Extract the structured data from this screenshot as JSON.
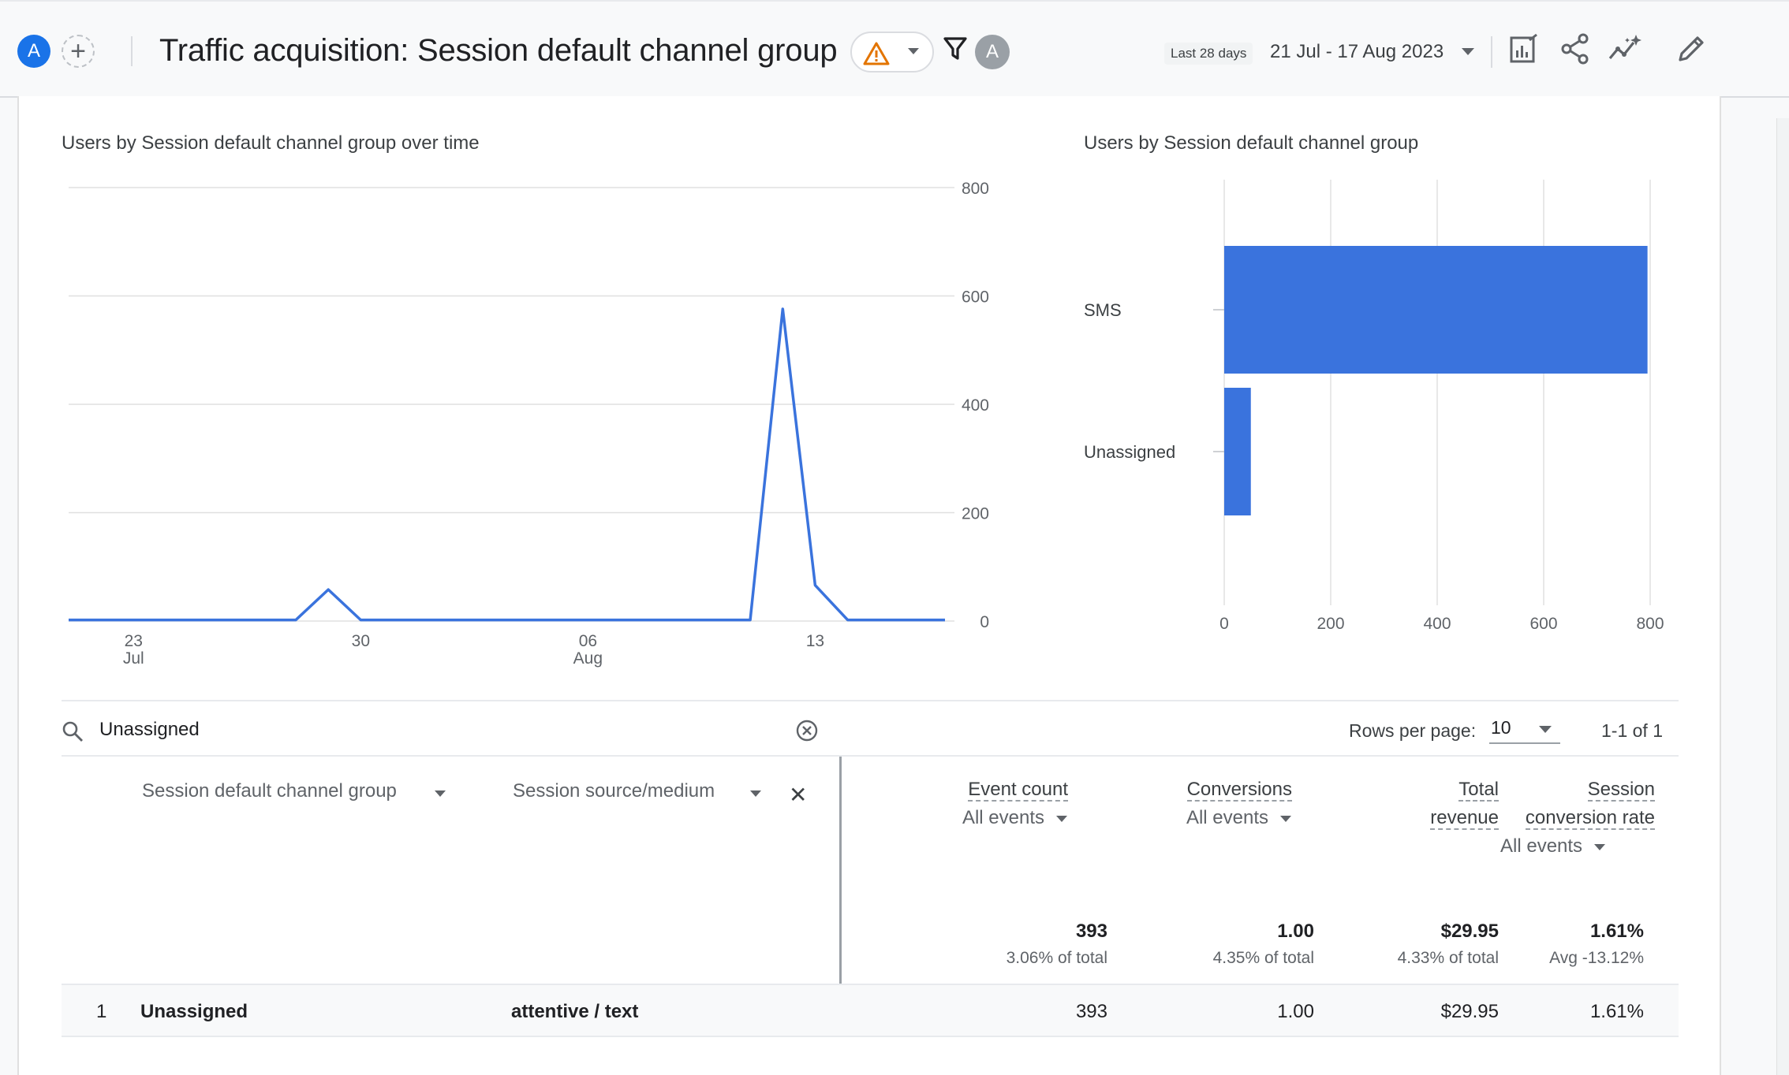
{
  "header": {
    "avatar_letter": "A",
    "add_comparison_symbol": "+",
    "title": "Traffic acquisition: Session default channel group",
    "comparison_avatar_letter": "A",
    "date_badge": "Last 28 days",
    "date_range": "21 Jul - 17 Aug 2023",
    "icons": [
      "warning-icon",
      "filter-icon",
      "customize-report-icon",
      "share-icon",
      "insights-icon",
      "edit-icon"
    ],
    "warning_color": "#e37400"
  },
  "line_chart": {
    "title": "Users by Session default channel group over time"
  },
  "bar_chart": {
    "title": "Users by Session default channel group"
  },
  "chart_data": [
    {
      "type": "line",
      "title": "Users by Session default channel group over time",
      "x_tick_labels": [
        {
          "day": "23",
          "month": "Jul"
        },
        {
          "day": "30",
          "month": ""
        },
        {
          "day": "06",
          "month": "Aug"
        },
        {
          "day": "13",
          "month": ""
        }
      ],
      "y_ticks": [
        0,
        200,
        400,
        600,
        800
      ],
      "ylim": [
        0,
        800
      ],
      "x": [
        "2023-07-21",
        "2023-07-22",
        "2023-07-23",
        "2023-07-24",
        "2023-07-25",
        "2023-07-26",
        "2023-07-27",
        "2023-07-28",
        "2023-07-29",
        "2023-07-30",
        "2023-07-31",
        "2023-08-01",
        "2023-08-02",
        "2023-08-03",
        "2023-08-04",
        "2023-08-05",
        "2023-08-06",
        "2023-08-07",
        "2023-08-08",
        "2023-08-09",
        "2023-08-10",
        "2023-08-11",
        "2023-08-12",
        "2023-08-13",
        "2023-08-14",
        "2023-08-15",
        "2023-08-16",
        "2023-08-17"
      ],
      "series": [
        {
          "values": [
            2,
            2,
            2,
            2,
            2,
            2,
            2,
            2,
            58,
            2,
            2,
            2,
            2,
            2,
            2,
            2,
            2,
            2,
            2,
            2,
            2,
            2,
            576,
            66,
            2,
            2,
            2,
            2
          ],
          "color": "#3a73dd"
        }
      ],
      "grid": true
    },
    {
      "type": "bar",
      "orientation": "horizontal",
      "title": "Users by Session default channel group",
      "categories": [
        "SMS",
        "Unassigned"
      ],
      "values": [
        795,
        50
      ],
      "x_ticks": [
        0,
        200,
        400,
        600,
        800
      ],
      "xlim": [
        0,
        800
      ],
      "color": "#3a73dd",
      "grid": true
    }
  ],
  "table": {
    "search_value": "Unassigned",
    "rows_per_page_label": "Rows per page:",
    "rows_per_page": "10",
    "pager": "1-1 of 1",
    "dimensions": [
      "Session default channel group",
      "Session source/medium"
    ],
    "remove_symbol": "✕",
    "metrics": [
      {
        "name_line1": "Event count",
        "name_line2": "",
        "sub": "All events",
        "total": "393",
        "total_sub": "3.06% of total"
      },
      {
        "name_line1": "Conversions",
        "name_line2": "",
        "sub": "All events",
        "total": "1.00",
        "total_sub": "4.35% of total"
      },
      {
        "name_line1": "Total",
        "name_line2": "revenue",
        "sub": "",
        "total": "$29.95",
        "total_sub": "4.33% of total"
      },
      {
        "name_line1": "Session",
        "name_line2": "conversion rate",
        "sub": "All events",
        "total": "1.61%",
        "total_sub": "Avg -13.12%"
      }
    ],
    "rows": [
      {
        "index": "1",
        "channel": "Unassigned",
        "source_medium": "attentive / text",
        "event_count": "393",
        "conversions": "1.00",
        "revenue": "$29.95",
        "conversion_rate": "1.61%"
      }
    ]
  }
}
